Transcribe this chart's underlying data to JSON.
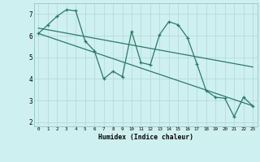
{
  "xlabel": "Humidex (Indice chaleur)",
  "background_color": "#cff0f0",
  "grid_color": "#b8dada",
  "line_color": "#2a7a6a",
  "xlim": [
    -0.5,
    23.5
  ],
  "ylim": [
    1.8,
    7.5
  ],
  "yticks": [
    2,
    3,
    4,
    5,
    6,
    7
  ],
  "xticks": [
    0,
    1,
    2,
    3,
    4,
    5,
    6,
    7,
    8,
    9,
    10,
    11,
    12,
    13,
    14,
    15,
    16,
    17,
    18,
    19,
    20,
    21,
    22,
    23
  ],
  "line1_x": [
    0,
    1,
    2,
    3,
    4,
    5,
    6,
    7,
    8,
    9,
    10,
    11,
    12,
    13,
    14,
    15,
    16,
    17,
    18,
    19,
    20,
    21,
    22,
    23
  ],
  "line1_y": [
    6.1,
    6.5,
    6.9,
    7.2,
    7.15,
    5.75,
    5.3,
    4.0,
    4.35,
    4.1,
    6.2,
    4.75,
    4.65,
    6.05,
    6.65,
    6.5,
    5.9,
    4.7,
    3.45,
    3.15,
    3.1,
    2.25,
    3.15,
    2.75
  ],
  "line2_x": [
    0,
    23
  ],
  "line2_y": [
    6.1,
    2.75
  ],
  "line3_x": [
    0,
    23
  ],
  "line3_y": [
    6.35,
    4.55
  ]
}
